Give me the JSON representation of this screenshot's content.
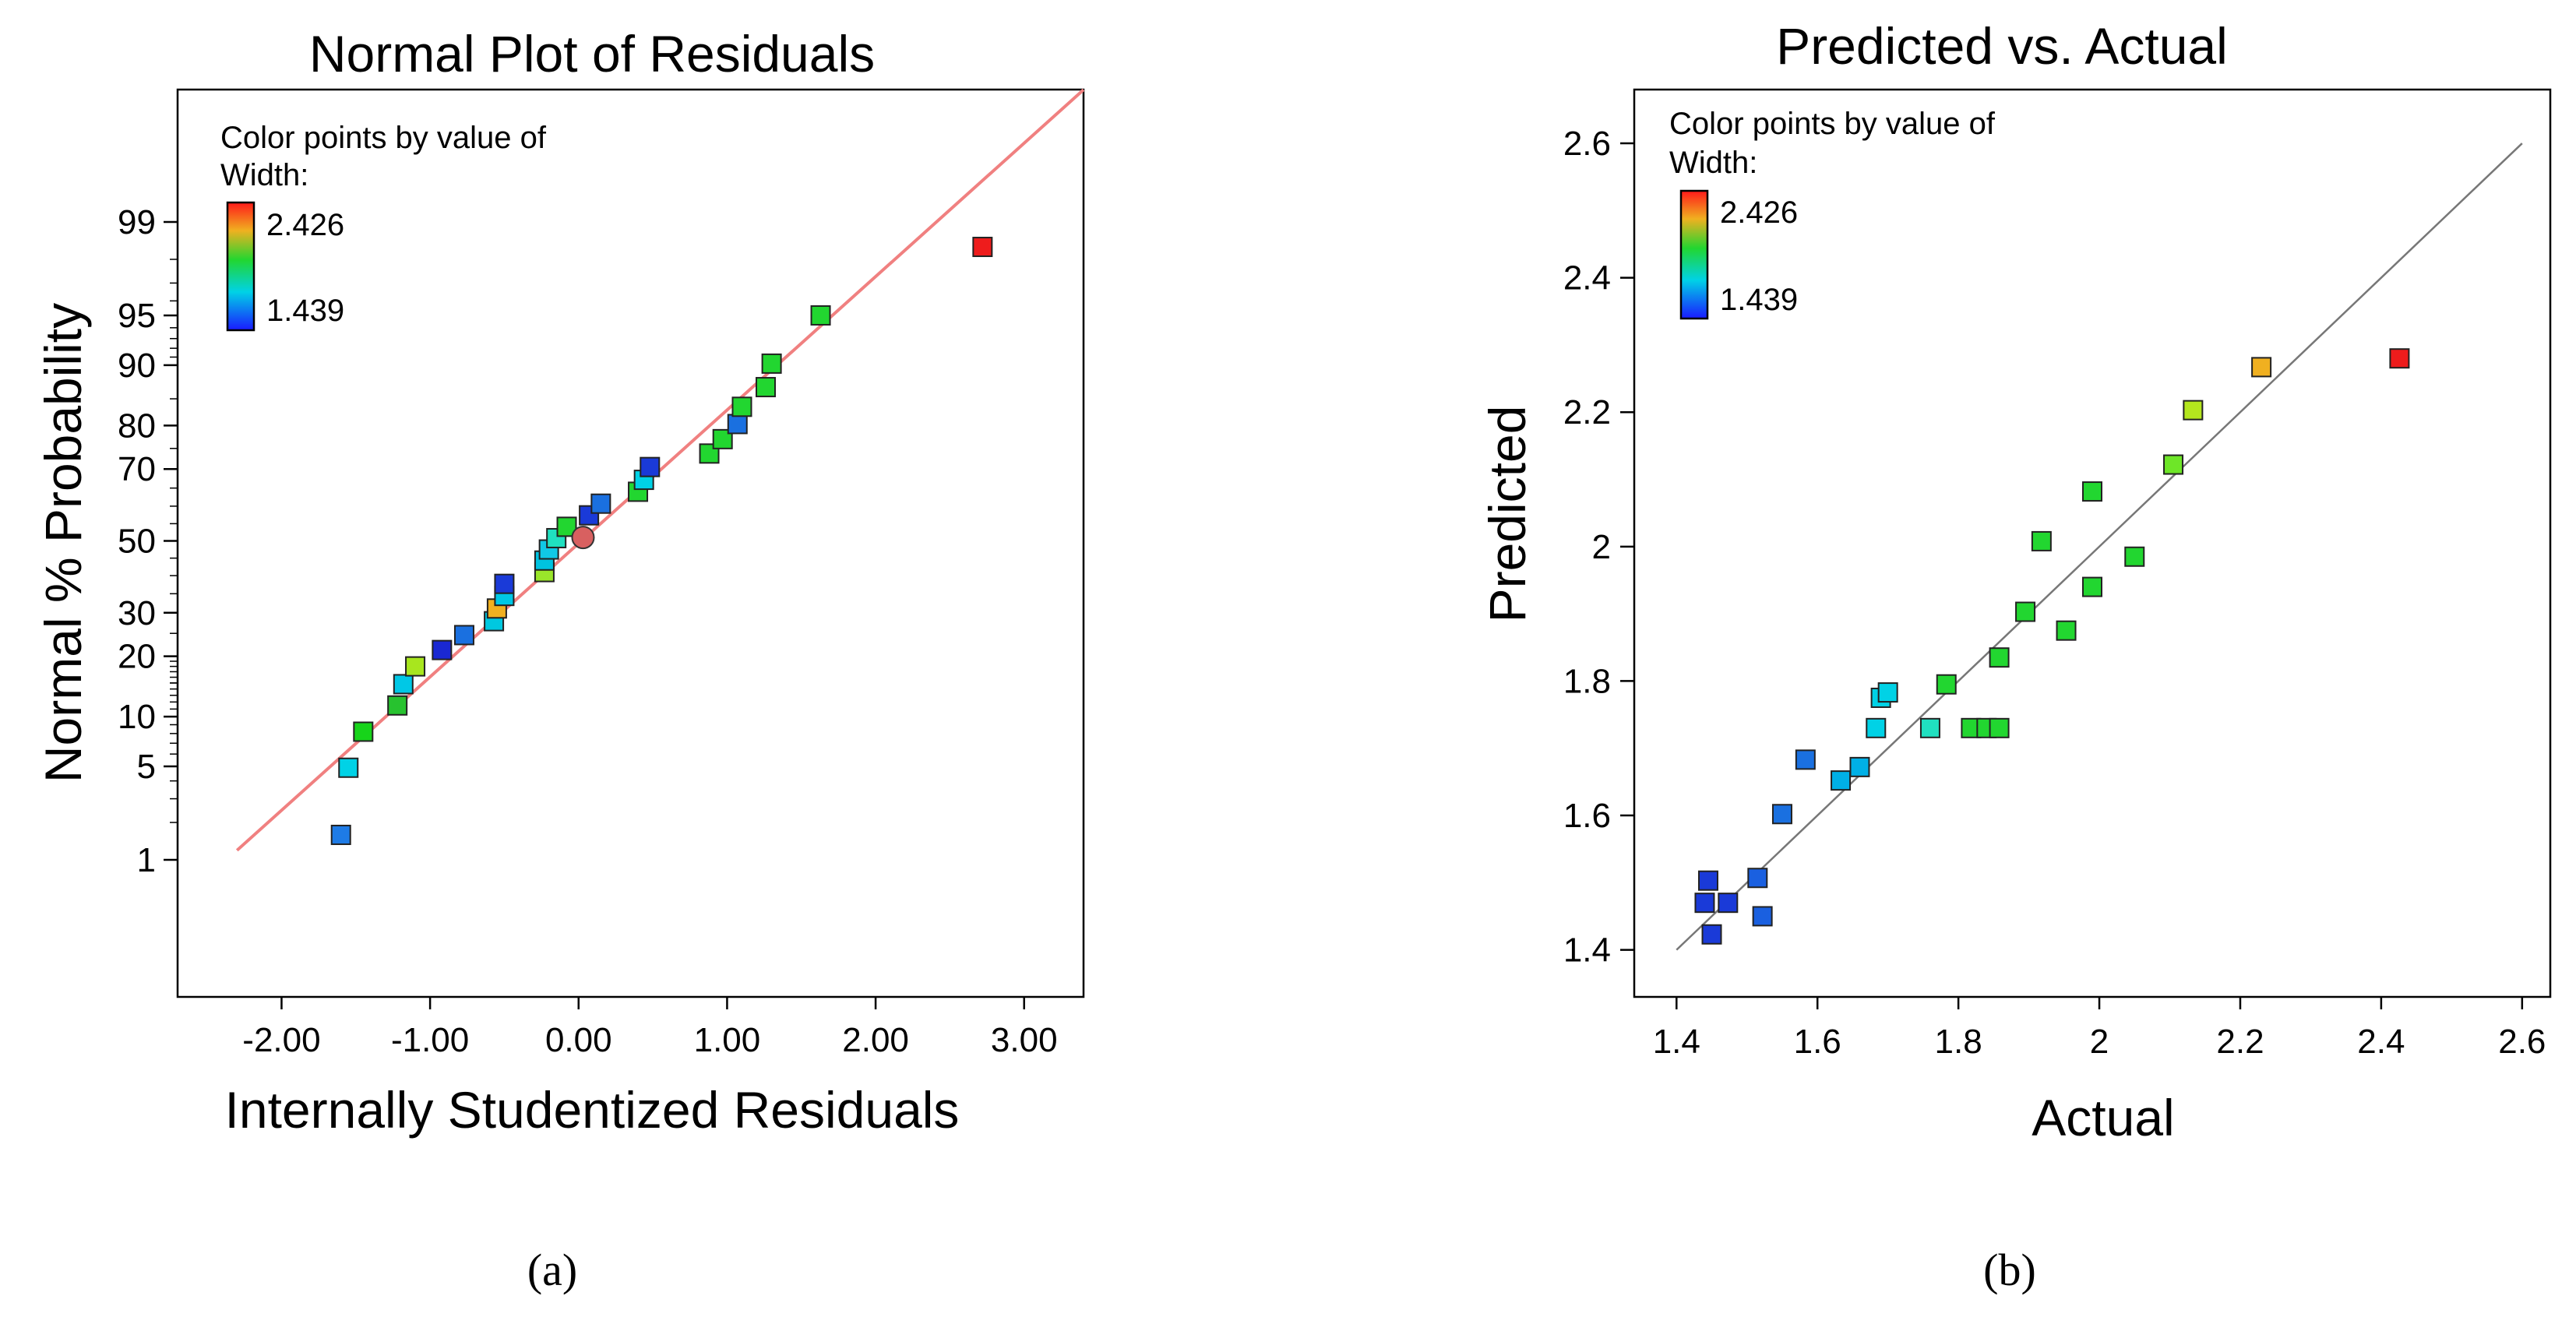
{
  "chart_data": [
    {
      "type": "scatter",
      "title": "Normal Plot of Residuals",
      "xlabel": "Internally Studentized Residuals",
      "ylabel": "Normal % Probability",
      "xlim": [
        -2.7,
        3.4
      ],
      "x_ticks": [
        "-2.00",
        "-1.00",
        "0.00",
        "1.00",
        "2.00",
        "3.00"
      ],
      "x_tick_values": [
        -2,
        -1,
        0,
        1,
        2,
        3
      ],
      "y_ticks": [
        "1",
        "5",
        "10",
        "20",
        "30",
        "50",
        "70",
        "80",
        "90",
        "95",
        "99"
      ],
      "y_tick_values": [
        1,
        5,
        10,
        20,
        30,
        50,
        70,
        80,
        90,
        95,
        99
      ],
      "y_scale": "normal-probability",
      "grid": false,
      "legend": {
        "title_line1": "Color points by value of",
        "title_line2": "Width:",
        "max_label": "2.426",
        "min_label": "1.439",
        "max_color": "#ff1a1a",
        "min_color": "#1a1aff",
        "placement": "top-left"
      },
      "reference_line": {
        "color": "#f08080",
        "x": [
          -2.3,
          3.4
        ],
        "y": [
          1.2,
          99.95
        ]
      },
      "points": [
        {
          "x": -1.6,
          "y": 1.6,
          "color": "#1e7be6"
        },
        {
          "x": -1.55,
          "y": 4.9,
          "color": "#00d2e6"
        },
        {
          "x": -1.45,
          "y": 8.2,
          "color": "#17d41a"
        },
        {
          "x": -1.22,
          "y": 11.5,
          "color": "#27c22f"
        },
        {
          "x": -1.18,
          "y": 14.8,
          "color": "#00c8e6"
        },
        {
          "x": -1.1,
          "y": 18.0,
          "color": "#a8e61e"
        },
        {
          "x": -0.92,
          "y": 21.3,
          "color": "#1a28d2"
        },
        {
          "x": -0.77,
          "y": 24.6,
          "color": "#1a70e0"
        },
        {
          "x": -0.57,
          "y": 27.9,
          "color": "#00c8e0"
        },
        {
          "x": -0.55,
          "y": 31.1,
          "color": "#f0b020"
        },
        {
          "x": -0.5,
          "y": 34.4,
          "color": "#00c8e6"
        },
        {
          "x": -0.5,
          "y": 37.7,
          "color": "#1a3ad8"
        },
        {
          "x": -0.23,
          "y": 41.0,
          "color": "#9ae62a"
        },
        {
          "x": -0.23,
          "y": 44.3,
          "color": "#00c2e0"
        },
        {
          "x": -0.2,
          "y": 47.5,
          "color": "#10c8e6"
        },
        {
          "x": -0.15,
          "y": 50.8,
          "color": "#20e0c0"
        },
        {
          "x": -0.08,
          "y": 54.1,
          "color": "#22d630"
        },
        {
          "x": 0.03,
          "y": 51.0,
          "color": "#d86060",
          "shape": "circle"
        },
        {
          "x": 0.07,
          "y": 57.4,
          "color": "#1a3ad8"
        },
        {
          "x": 0.15,
          "y": 60.7,
          "color": "#1a70e0"
        },
        {
          "x": 0.4,
          "y": 64.0,
          "color": "#22d630"
        },
        {
          "x": 0.44,
          "y": 67.2,
          "color": "#00d2e6"
        },
        {
          "x": 0.48,
          "y": 70.5,
          "color": "#1a3ad8"
        },
        {
          "x": 0.88,
          "y": 73.8,
          "color": "#22d630"
        },
        {
          "x": 0.97,
          "y": 77.1,
          "color": "#22d630"
        },
        {
          "x": 1.07,
          "y": 80.3,
          "color": "#1a70e0"
        },
        {
          "x": 1.1,
          "y": 83.6,
          "color": "#22d630"
        },
        {
          "x": 1.26,
          "y": 86.9,
          "color": "#22d630"
        },
        {
          "x": 1.3,
          "y": 90.2,
          "color": "#22d630"
        },
        {
          "x": 1.63,
          "y": 95.0,
          "color": "#22d630"
        },
        {
          "x": 2.72,
          "y": 98.4,
          "color": "#ee1c1c"
        }
      ]
    },
    {
      "type": "scatter",
      "title": "Predicted vs. Actual",
      "xlabel": "Actual",
      "ylabel": "Predicted",
      "xlim": [
        1.34,
        2.64
      ],
      "ylim": [
        1.33,
        2.68
      ],
      "x_ticks": [
        "1.4",
        "1.6",
        "1.8",
        "2",
        "2.2",
        "2.4",
        "2.6"
      ],
      "x_tick_values": [
        1.4,
        1.6,
        1.8,
        2.0,
        2.2,
        2.4,
        2.6
      ],
      "y_ticks": [
        "1.4",
        "1.6",
        "1.8",
        "2",
        "2.2",
        "2.4",
        "2.6"
      ],
      "y_tick_values": [
        1.4,
        1.6,
        1.8,
        2.0,
        2.2,
        2.4,
        2.6
      ],
      "grid": false,
      "legend": {
        "title_line1": "Color points by value of",
        "title_line2": "Width:",
        "max_label": "2.426",
        "min_label": "1.439",
        "max_color": "#ff1a1a",
        "min_color": "#1a1aff",
        "placement": "top-left"
      },
      "reference_line": {
        "color": "#777777",
        "x": [
          1.4,
          2.6
        ],
        "y": [
          1.4,
          2.6
        ]
      },
      "points": [
        {
          "x": 1.44,
          "y": 1.47,
          "color": "#1a3ad8"
        },
        {
          "x": 1.445,
          "y": 1.503,
          "color": "#1a3ad8"
        },
        {
          "x": 1.45,
          "y": 1.423,
          "color": "#1a3ad8"
        },
        {
          "x": 1.473,
          "y": 1.47,
          "color": "#1a3ad8"
        },
        {
          "x": 1.515,
          "y": 1.507,
          "color": "#1a60e0"
        },
        {
          "x": 1.522,
          "y": 1.45,
          "color": "#1a60e0"
        },
        {
          "x": 1.55,
          "y": 1.602,
          "color": "#1a70e0"
        },
        {
          "x": 1.583,
          "y": 1.683,
          "color": "#1a70e0"
        },
        {
          "x": 1.633,
          "y": 1.652,
          "color": "#00b0e6"
        },
        {
          "x": 1.66,
          "y": 1.672,
          "color": "#00b0e6"
        },
        {
          "x": 1.683,
          "y": 1.73,
          "color": "#00d2e6"
        },
        {
          "x": 1.69,
          "y": 1.775,
          "color": "#00d2e6"
        },
        {
          "x": 1.7,
          "y": 1.783,
          "color": "#00d2e6"
        },
        {
          "x": 1.76,
          "y": 1.73,
          "color": "#20e0c0"
        },
        {
          "x": 1.783,
          "y": 1.795,
          "color": "#22d630"
        },
        {
          "x": 1.818,
          "y": 1.73,
          "color": "#22d630"
        },
        {
          "x": 1.84,
          "y": 1.73,
          "color": "#22d630"
        },
        {
          "x": 1.858,
          "y": 1.73,
          "color": "#22d630"
        },
        {
          "x": 1.858,
          "y": 1.835,
          "color": "#22d630"
        },
        {
          "x": 1.895,
          "y": 1.903,
          "color": "#22d630"
        },
        {
          "x": 1.918,
          "y": 2.008,
          "color": "#22d630"
        },
        {
          "x": 1.953,
          "y": 1.875,
          "color": "#22d630"
        },
        {
          "x": 1.99,
          "y": 1.94,
          "color": "#22d630"
        },
        {
          "x": 1.99,
          "y": 2.082,
          "color": "#22d630"
        },
        {
          "x": 2.05,
          "y": 1.985,
          "color": "#22d630"
        },
        {
          "x": 2.105,
          "y": 2.122,
          "color": "#6ee628"
        },
        {
          "x": 2.133,
          "y": 2.203,
          "color": "#b4e61e"
        },
        {
          "x": 2.23,
          "y": 2.267,
          "color": "#f0b020"
        },
        {
          "x": 2.426,
          "y": 2.28,
          "color": "#ee1c1c"
        }
      ]
    }
  ],
  "captions": [
    "(a)",
    "(b)"
  ]
}
